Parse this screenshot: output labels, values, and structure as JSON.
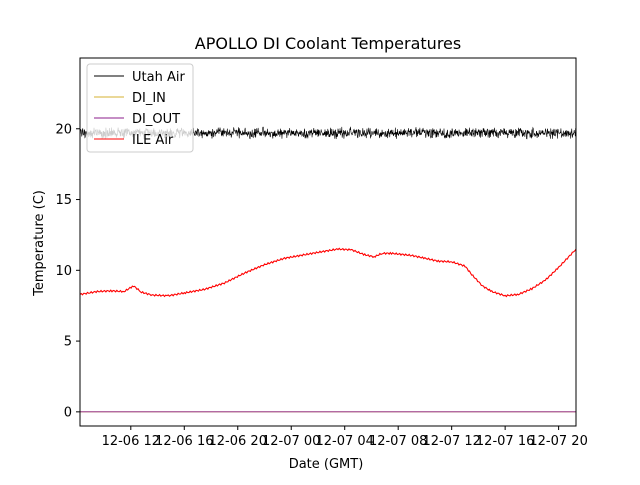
{
  "chart_data": {
    "type": "line",
    "title": "APOLLO DI Coolant Temperatures",
    "xlabel": "Date (GMT)",
    "ylabel": "Temperature (C)",
    "x_unit": "hours since 2018-12-06 00:00 GMT",
    "xlim": [
      8.2,
      45.3
    ],
    "ylim": [
      -1,
      25
    ],
    "yticks": [
      0,
      5,
      10,
      15,
      20
    ],
    "ytick_labels": [
      "0",
      "5",
      "10",
      "15",
      "20"
    ],
    "xticks": [
      12,
      16,
      20,
      24,
      28,
      32,
      36,
      40,
      44
    ],
    "xtick_labels": [
      "12-06 12",
      "12-06 16",
      "12-06 20",
      "12-07 00",
      "12-07 04",
      "12-07 08",
      "12-07 12",
      "12-07 16",
      "12-07 20"
    ],
    "legend_position": "top-left",
    "series": [
      {
        "name": "Utah Air",
        "color": "#000000",
        "style": "noisy-band",
        "center": 19.7,
        "noise_amplitude": 0.45
      },
      {
        "name": "DI_IN",
        "color": "#d4b030",
        "x": [
          8.2,
          45.3
        ],
        "y": [
          0,
          0
        ]
      },
      {
        "name": "DI_OUT",
        "color": "#8b1c8b",
        "x": [
          8.2,
          45.3
        ],
        "y": [
          0,
          0
        ]
      },
      {
        "name": "ILE Air",
        "color": "#ff0000",
        "x": [
          8.2,
          9.5,
          10.5,
          11.5,
          12.2,
          12.8,
          13.6,
          14.8,
          16,
          17.5,
          19,
          20.5,
          22,
          23.5,
          25,
          26.5,
          27.5,
          28.5,
          29.5,
          30.2,
          30.8,
          31.5,
          33,
          34,
          35,
          36,
          37,
          37.5,
          38.3,
          39,
          40,
          41,
          42,
          43,
          44,
          45.3
        ],
        "y": [
          8.3,
          8.5,
          8.55,
          8.5,
          8.9,
          8.45,
          8.25,
          8.2,
          8.4,
          8.65,
          9.1,
          9.8,
          10.4,
          10.85,
          11.1,
          11.35,
          11.5,
          11.45,
          11.1,
          10.95,
          11.2,
          11.2,
          11.05,
          10.85,
          10.65,
          10.6,
          10.3,
          9.7,
          8.9,
          8.5,
          8.2,
          8.3,
          8.7,
          9.3,
          10.2,
          11.5
        ]
      }
    ]
  }
}
